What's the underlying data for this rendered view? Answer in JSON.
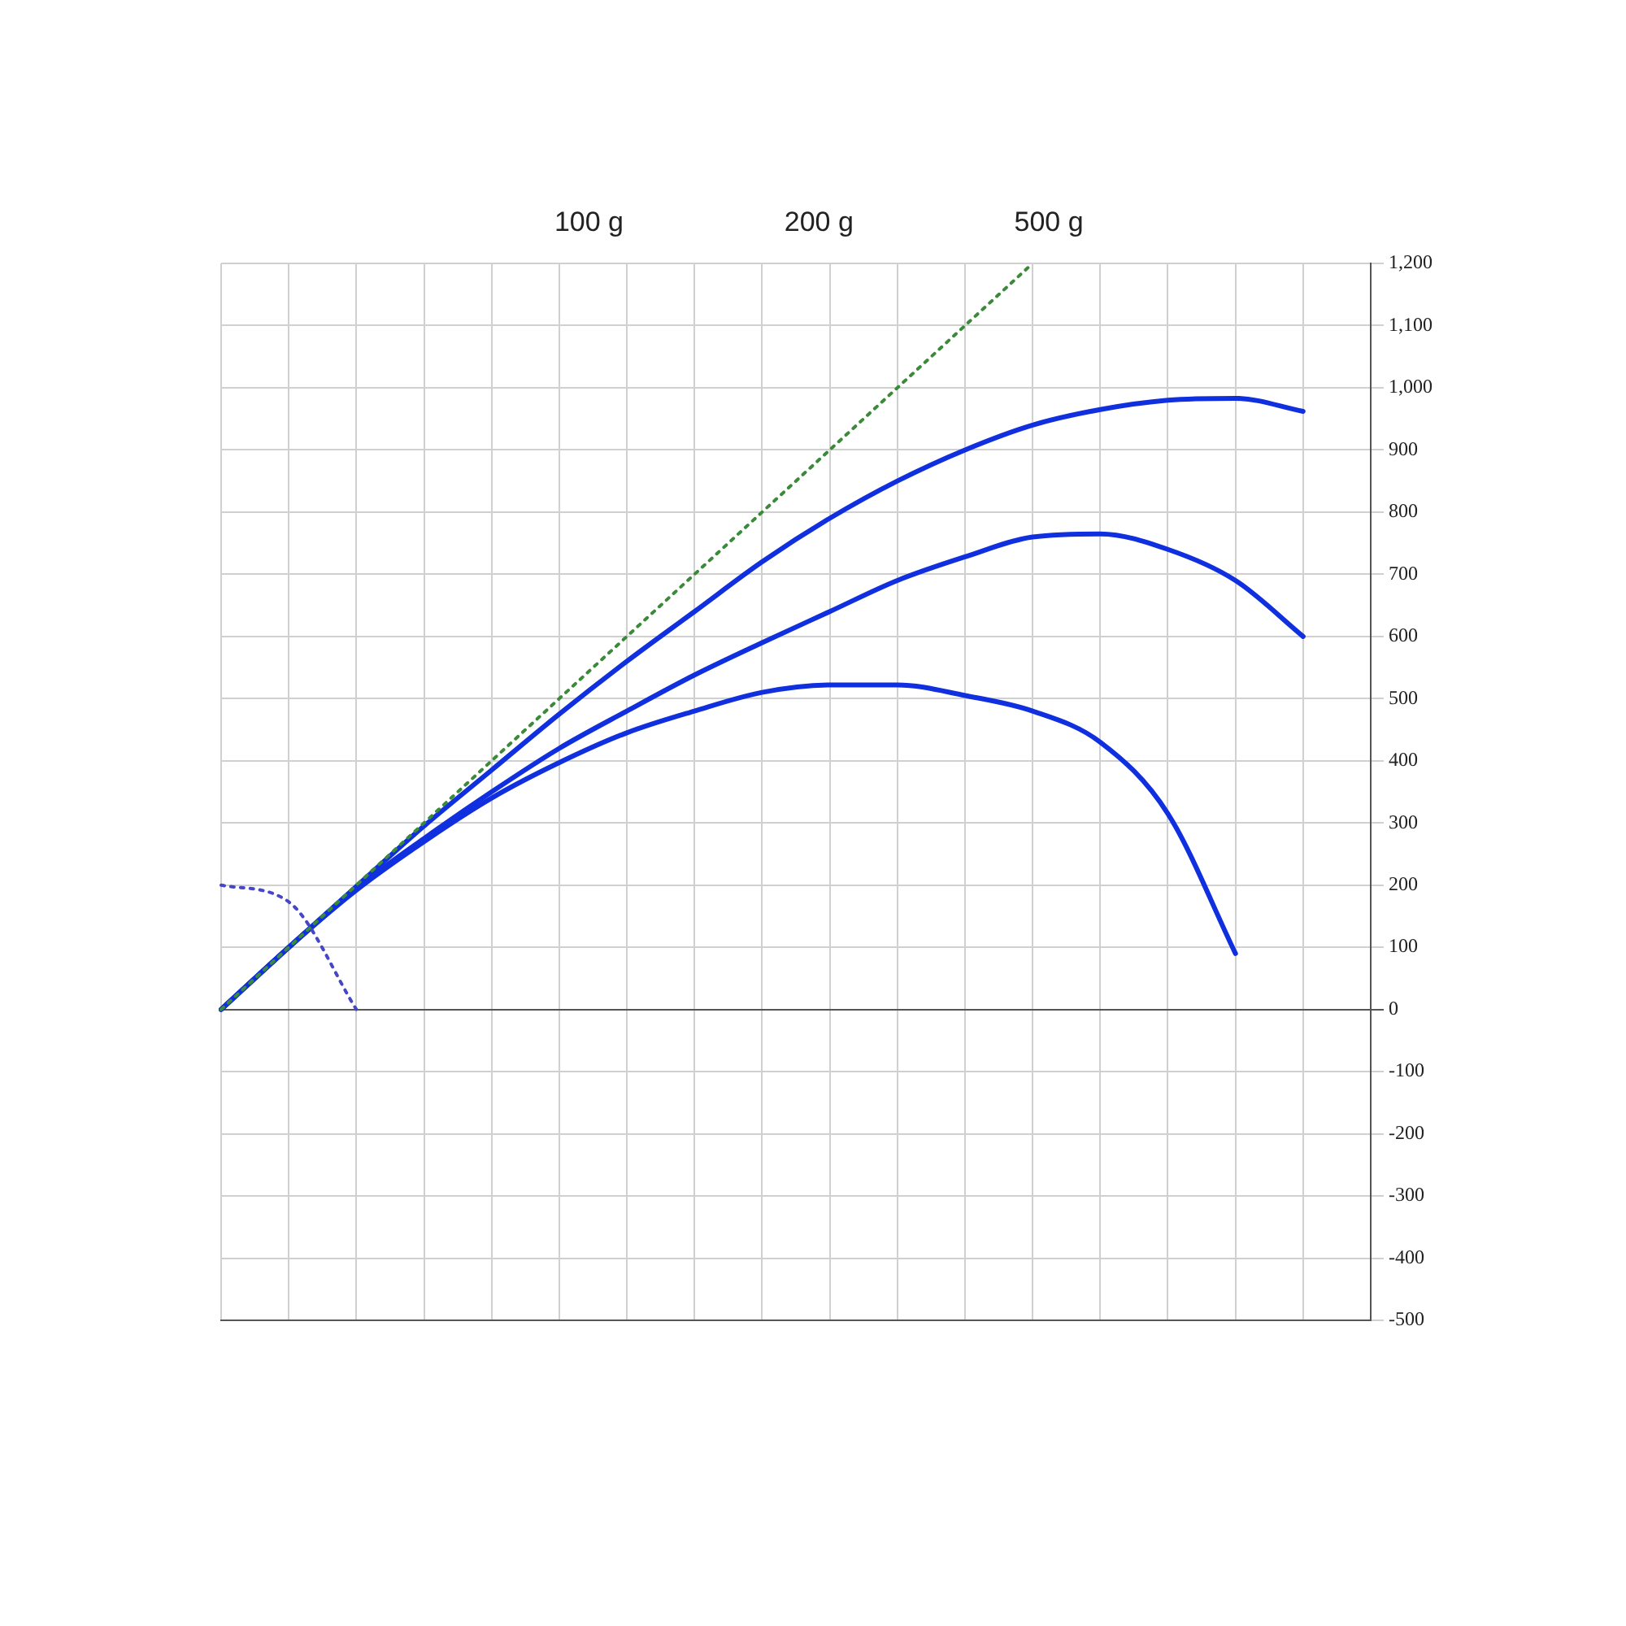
{
  "chart_data": {
    "type": "line",
    "annotations": [
      "100 g",
      "200 g",
      "500 g"
    ],
    "categories": [
      null,
      null,
      null,
      null,
      null,
      null,
      null,
      null,
      null,
      null,
      null,
      null,
      null,
      null,
      null,
      null,
      null,
      null
    ],
    "ylim": [
      -500,
      1200
    ],
    "yticks": [
      {
        "value": -500,
        "label": "-500"
      },
      {
        "value": -400,
        "label": "-400"
      },
      {
        "value": -300,
        "label": "-300"
      },
      {
        "value": -200,
        "label": "-200"
      },
      {
        "value": -100,
        "label": "-100"
      },
      {
        "value": 0,
        "label": "0"
      },
      {
        "value": 100,
        "label": "100"
      },
      {
        "value": 200,
        "label": "200"
      },
      {
        "value": 300,
        "label": "300"
      },
      {
        "value": 400,
        "label": "400"
      },
      {
        "value": 500,
        "label": "500"
      },
      {
        "value": 600,
        "label": "600"
      },
      {
        "value": 700,
        "label": "700"
      },
      {
        "value": 800,
        "label": "800"
      },
      {
        "value": 900,
        "label": "900"
      },
      {
        "value": 1000,
        "label": "1,000"
      },
      {
        "value": 1100,
        "label": "1,100"
      },
      {
        "value": 1200,
        "label": "1,200"
      }
    ],
    "grid": true,
    "legend": false,
    "tick_labels": "y",
    "marker": "none",
    "series": [
      {
        "type": "line",
        "color": "#3a8a3a",
        "line_style": "dotted",
        "values": [
          0,
          100,
          200,
          300,
          400,
          500,
          600,
          700,
          800,
          900,
          1000,
          1100,
          1200,
          null,
          null,
          null,
          null,
          null
        ]
      },
      {
        "type": "line",
        "color": "#4646c8",
        "line_style": "dotted",
        "values": [
          200,
          173,
          0,
          null,
          null,
          null,
          null,
          null,
          null,
          null,
          null,
          null,
          null,
          null,
          null,
          null,
          null,
          null
        ]
      },
      {
        "type": "line",
        "color": "#1030e0",
        "line_style": "solid",
        "values": [
          0,
          100,
          198,
          295,
          385,
          475,
          560,
          640,
          720,
          790,
          850,
          900,
          940,
          965,
          980,
          983,
          962,
          null
        ]
      },
      {
        "type": "line",
        "color": "#1030e0",
        "line_style": "solid",
        "values": [
          0,
          100,
          195,
          275,
          350,
          420,
          480,
          538,
          590,
          640,
          690,
          728,
          760,
          765,
          740,
          690,
          600,
          null
        ]
      },
      {
        "type": "line",
        "color": "#1030e0",
        "line_style": "solid",
        "values": [
          0,
          100,
          192,
          270,
          340,
          397,
          445,
          480,
          510,
          522,
          522,
          505,
          480,
          430,
          315,
          90,
          null,
          null
        ]
      }
    ]
  }
}
